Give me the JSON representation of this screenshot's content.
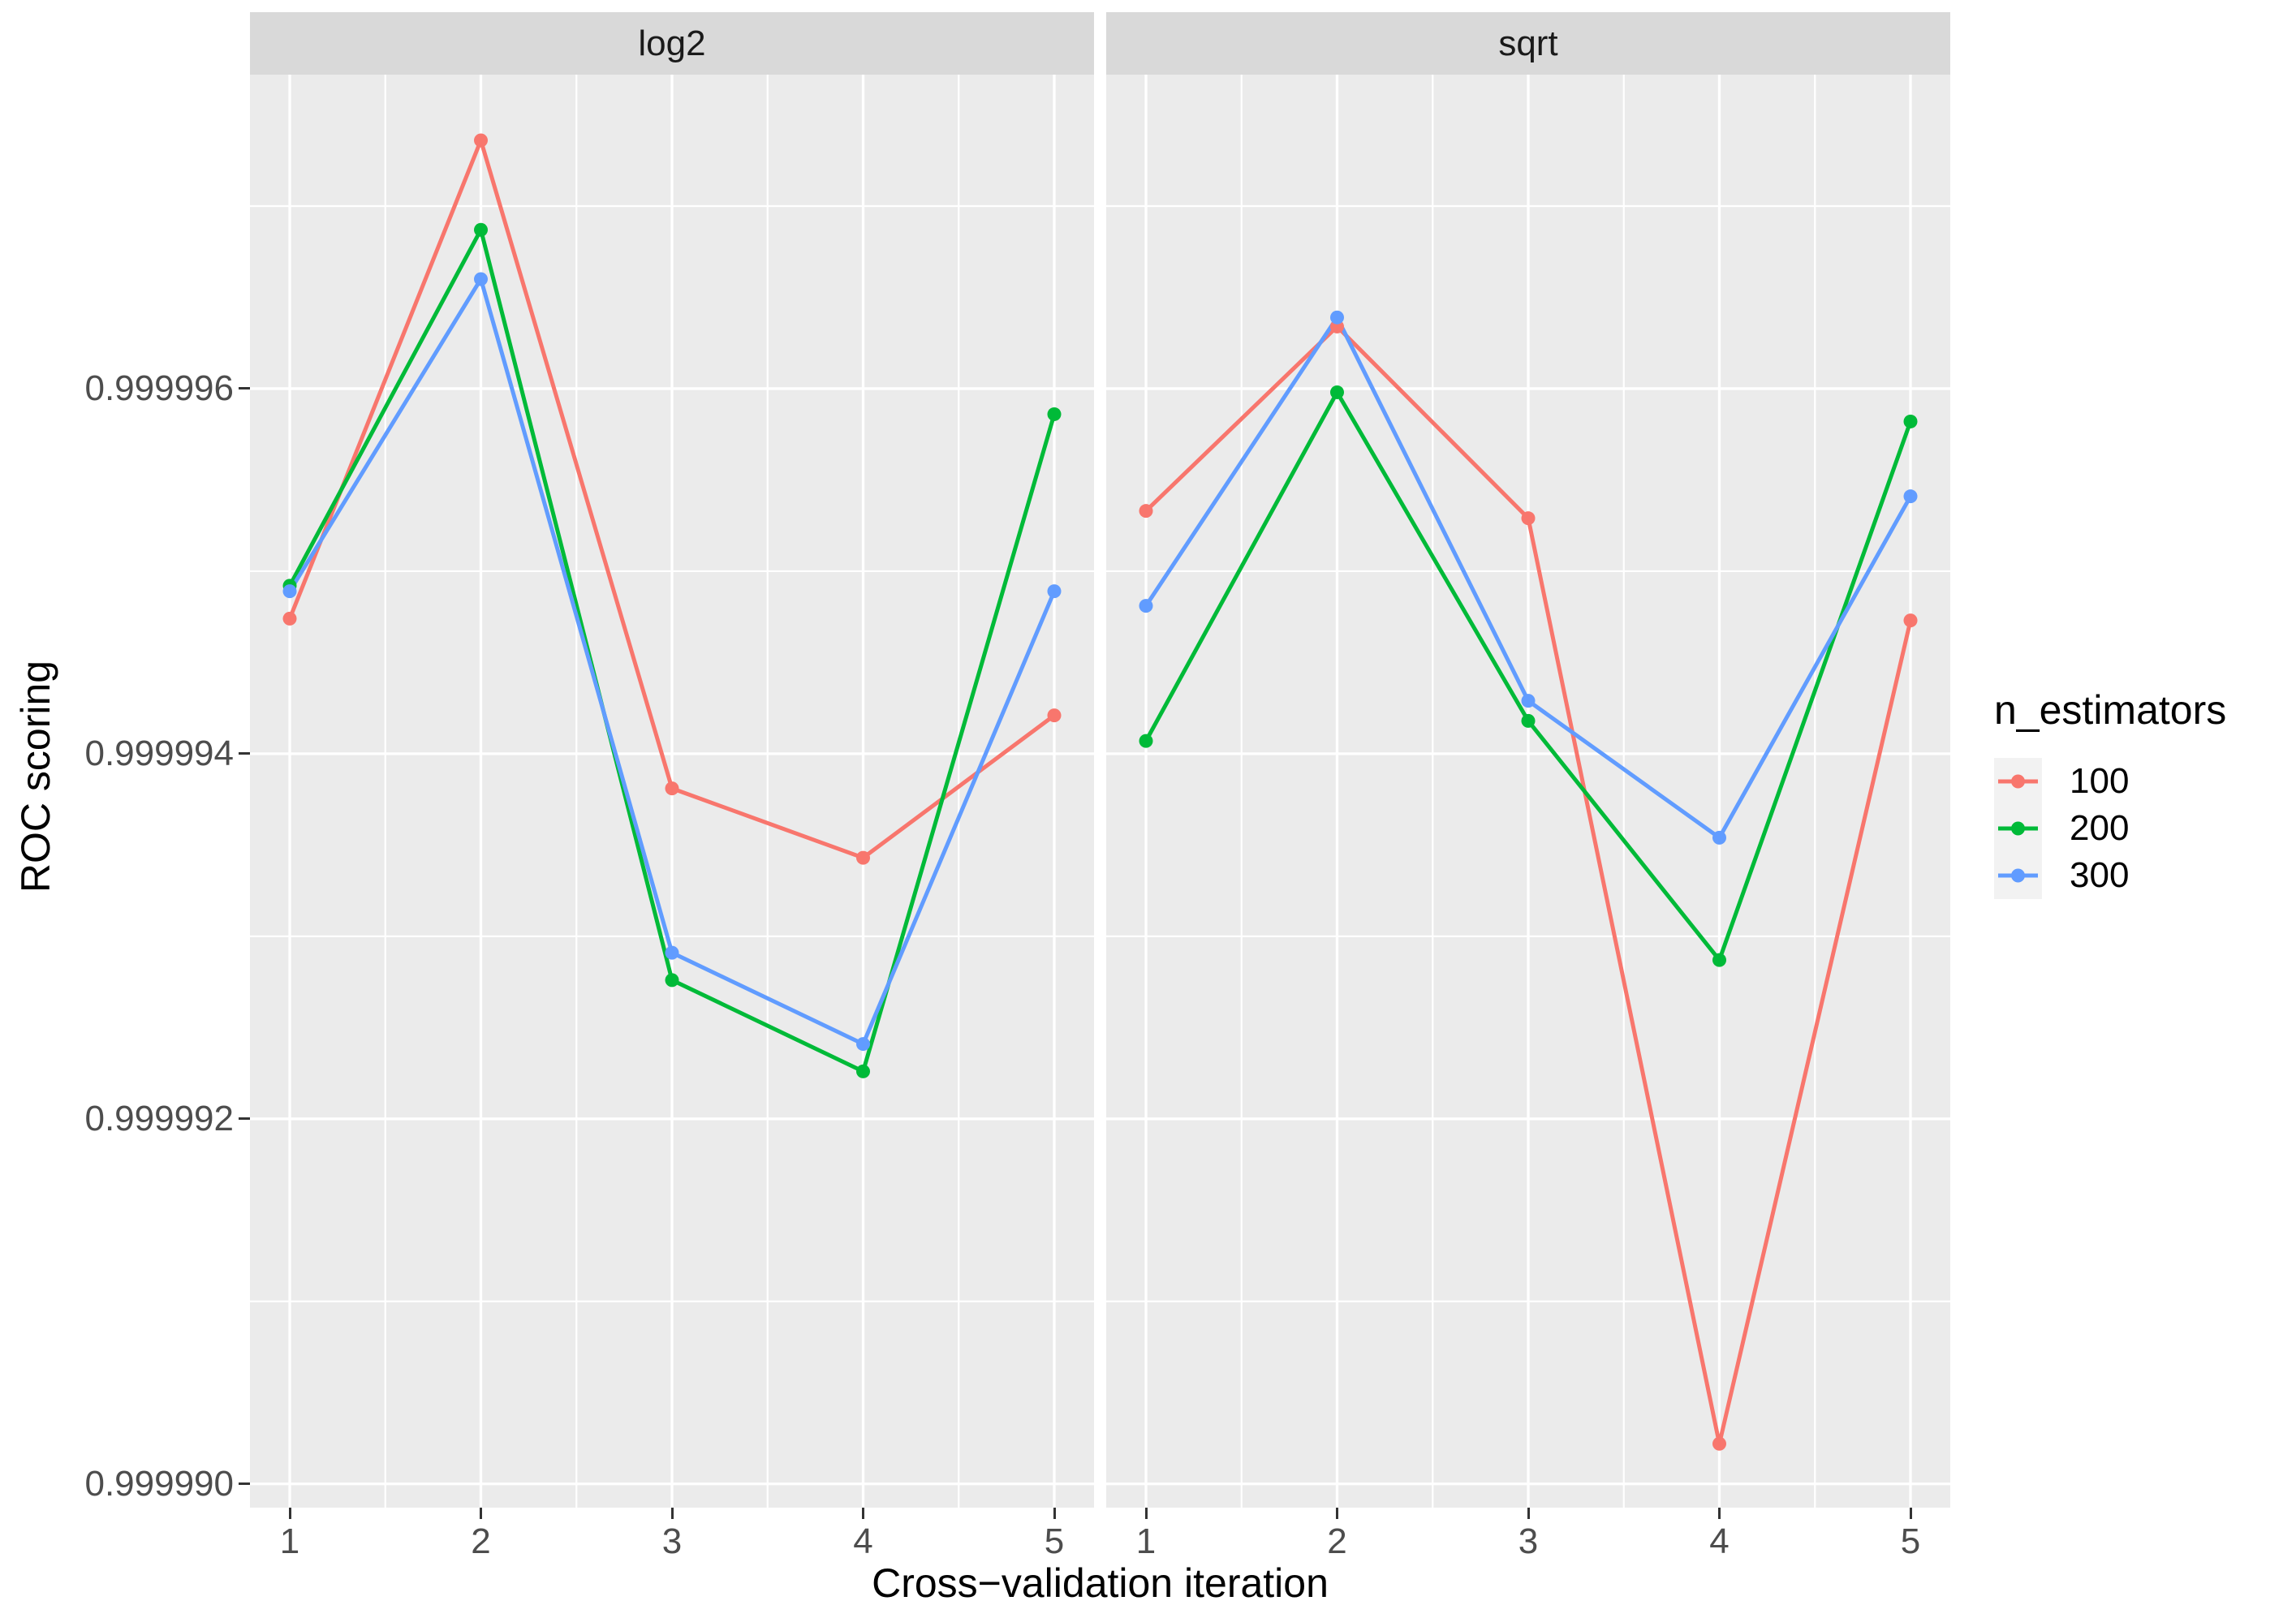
{
  "chart_data": {
    "type": "line",
    "faceted_by": "max_features",
    "xlabel": "Cross−validation iteration",
    "ylabel": "ROC scoring",
    "legend_title": "n_estimators",
    "legend_position": "right",
    "grid": true,
    "panel_bg": "#EBEBEB",
    "strip_bg": "#D9D9D9",
    "grid_color": "#FFFFFF",
    "tick_color": "#333333",
    "tick_label_color": "#4D4D4D",
    "x_tick_labels": [
      "1",
      "2",
      "3",
      "4",
      "5"
    ],
    "y_tick_labels": [
      "0.999990",
      "0.999992",
      "0.999994",
      "0.999996"
    ],
    "y_breaks": [
      0.99999,
      0.999992,
      0.999994,
      0.999996
    ],
    "y_minor_breaks": [
      0.999991,
      0.999993,
      0.999995,
      0.999997
    ],
    "x_minor_breaks": [
      1.5,
      2.5,
      3.5,
      4.5
    ],
    "ylim": [
      0.99998987,
      0.99999772
    ],
    "facets": [
      {
        "label": "log2",
        "x": [
          1,
          2,
          3,
          4,
          5
        ],
        "series": [
          {
            "name": "100",
            "color": "#F8766D",
            "values": [
              0.99999474,
              0.99999736,
              0.99999381,
              0.99999343,
              0.99999421
            ]
          },
          {
            "name": "200",
            "color": "#00BA38",
            "values": [
              0.99999492,
              0.99999687,
              0.99999276,
              0.99999226,
              0.99999586
            ]
          },
          {
            "name": "300",
            "color": "#619CFF",
            "values": [
              0.99999489,
              0.9999966,
              0.99999291,
              0.99999241,
              0.99999489
            ]
          }
        ]
      },
      {
        "label": "sqrt",
        "x": [
          1,
          2,
          3,
          4,
          5
        ],
        "series": [
          {
            "name": "100",
            "color": "#F8766D",
            "values": [
              0.99999533,
              0.99999634,
              0.99999529,
              0.99999022,
              0.99999473
            ]
          },
          {
            "name": "200",
            "color": "#00BA38",
            "values": [
              0.99999407,
              0.99999598,
              0.99999418,
              0.99999287,
              0.99999582
            ]
          },
          {
            "name": "300",
            "color": "#619CFF",
            "values": [
              0.99999481,
              0.99999639,
              0.99999429,
              0.99999354,
              0.99999541
            ]
          }
        ]
      }
    ],
    "legend_entries": [
      {
        "label": "100",
        "color": "#F8766D"
      },
      {
        "label": "200",
        "color": "#00BA38"
      },
      {
        "label": "300",
        "color": "#619CFF"
      }
    ]
  }
}
